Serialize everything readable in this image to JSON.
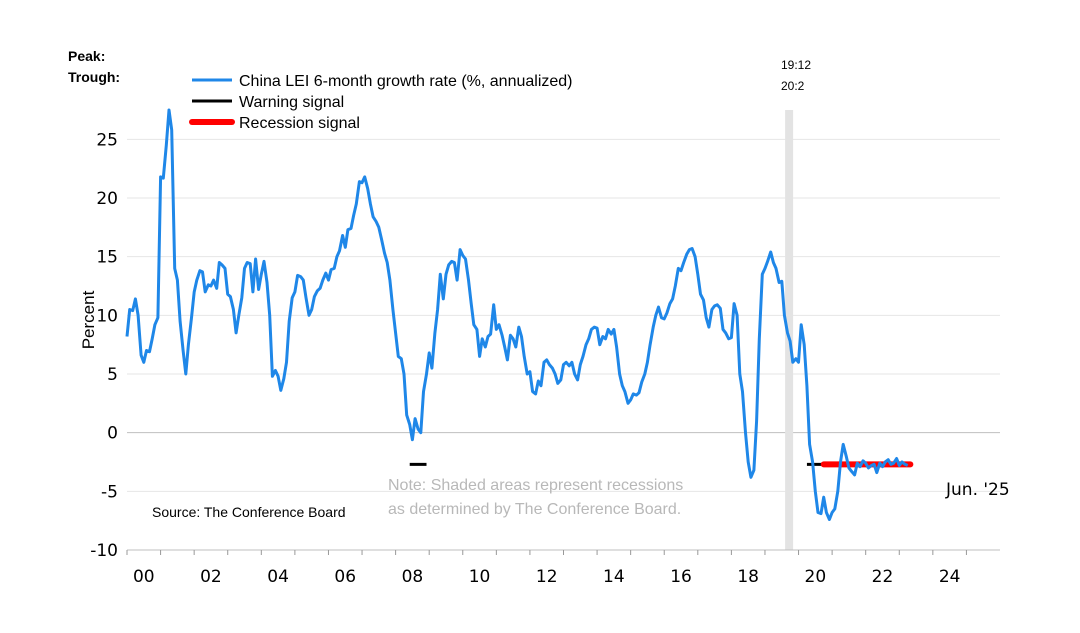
{
  "chart_data": {
    "type": "line",
    "ylabel": "Percent",
    "ylim": [
      -10,
      27.5
    ],
    "yticks": [
      25,
      20,
      15,
      10,
      5,
      0,
      -5,
      -10
    ],
    "xlim": [
      2000,
      2026
    ],
    "xticks": [
      {
        "label": "00",
        "year": 2000
      },
      {
        "label": "02",
        "year": 2002
      },
      {
        "label": "04",
        "year": 2004
      },
      {
        "label": "06",
        "year": 2006
      },
      {
        "label": "08",
        "year": 2008
      },
      {
        "label": "10",
        "year": 2010
      },
      {
        "label": "12",
        "year": 2012
      },
      {
        "label": "14",
        "year": 2014
      },
      {
        "label": "16",
        "year": 2016
      },
      {
        "label": "18",
        "year": 2018
      },
      {
        "label": "20",
        "year": 2020
      },
      {
        "label": "22",
        "year": 2022
      },
      {
        "label": "24",
        "year": 2024
      }
    ],
    "grid": "horizontal",
    "peak_label": "Peak:",
    "trough_label": "Trough:",
    "recessions": [
      {
        "start": 2019.6,
        "end": 2019.8,
        "peak": "19:12",
        "trough": "20:2"
      }
    ],
    "legend": {
      "placement": "top-left",
      "entries": [
        {
          "name": "China LEI 6-month growth rate (%, annualized)",
          "color": "#1f87e8",
          "style": "line"
        },
        {
          "name": "Warning signal",
          "color": "#000000",
          "style": "line"
        },
        {
          "name": "Recession signal",
          "color": "#ff0000",
          "style": "thick"
        }
      ]
    },
    "series": [
      {
        "name": "China LEI 6-month growth rate (%, annualized)",
        "color": "#1f87e8",
        "points": [
          [
            2000.0,
            8.2
          ],
          [
            2000.08,
            10.5
          ],
          [
            2000.17,
            10.4
          ],
          [
            2000.25,
            11.4
          ],
          [
            2000.33,
            10.0
          ],
          [
            2000.42,
            6.6
          ],
          [
            2000.5,
            6.0
          ],
          [
            2000.58,
            7.0
          ],
          [
            2000.67,
            6.9
          ],
          [
            2000.75,
            8.0
          ],
          [
            2000.83,
            9.2
          ],
          [
            2000.92,
            9.8
          ],
          [
            2001.0,
            21.8
          ],
          [
            2001.08,
            21.7
          ],
          [
            2001.17,
            24.5
          ],
          [
            2001.25,
            27.5
          ],
          [
            2001.33,
            25.8
          ],
          [
            2001.42,
            14.0
          ],
          [
            2001.5,
            13.0
          ],
          [
            2001.58,
            9.5
          ],
          [
            2001.67,
            7.0
          ],
          [
            2001.75,
            5.0
          ],
          [
            2001.83,
            7.5
          ],
          [
            2001.92,
            9.8
          ],
          [
            2002.0,
            12.0
          ],
          [
            2002.08,
            13.0
          ],
          [
            2002.17,
            13.8
          ],
          [
            2002.25,
            13.7
          ],
          [
            2002.33,
            12.0
          ],
          [
            2002.42,
            12.6
          ],
          [
            2002.5,
            12.5
          ],
          [
            2002.58,
            13.0
          ],
          [
            2002.67,
            12.3
          ],
          [
            2002.75,
            14.5
          ],
          [
            2002.83,
            14.3
          ],
          [
            2002.92,
            14.0
          ],
          [
            2003.0,
            11.8
          ],
          [
            2003.08,
            11.6
          ],
          [
            2003.17,
            10.5
          ],
          [
            2003.25,
            8.5
          ],
          [
            2003.33,
            10.0
          ],
          [
            2003.42,
            11.5
          ],
          [
            2003.5,
            14.0
          ],
          [
            2003.58,
            14.5
          ],
          [
            2003.67,
            14.4
          ],
          [
            2003.75,
            12.0
          ],
          [
            2003.83,
            14.8
          ],
          [
            2003.92,
            12.2
          ],
          [
            2004.0,
            13.5
          ],
          [
            2004.08,
            14.6
          ],
          [
            2004.17,
            12.8
          ],
          [
            2004.25,
            10.0
          ],
          [
            2004.33,
            4.8
          ],
          [
            2004.42,
            5.3
          ],
          [
            2004.5,
            4.8
          ],
          [
            2004.58,
            3.6
          ],
          [
            2004.67,
            4.6
          ],
          [
            2004.75,
            6.0
          ],
          [
            2004.83,
            9.5
          ],
          [
            2004.92,
            11.5
          ],
          [
            2005.0,
            12.0
          ],
          [
            2005.08,
            13.4
          ],
          [
            2005.17,
            13.3
          ],
          [
            2005.25,
            13.0
          ],
          [
            2005.33,
            11.5
          ],
          [
            2005.42,
            10.0
          ],
          [
            2005.5,
            10.5
          ],
          [
            2005.58,
            11.6
          ],
          [
            2005.67,
            12.1
          ],
          [
            2005.75,
            12.3
          ],
          [
            2005.83,
            13.0
          ],
          [
            2005.92,
            13.6
          ],
          [
            2006.0,
            13.0
          ],
          [
            2006.08,
            13.9
          ],
          [
            2006.17,
            14.0
          ],
          [
            2006.25,
            15.0
          ],
          [
            2006.33,
            15.5
          ],
          [
            2006.42,
            16.8
          ],
          [
            2006.5,
            15.8
          ],
          [
            2006.58,
            17.3
          ],
          [
            2006.67,
            17.4
          ],
          [
            2006.75,
            18.5
          ],
          [
            2006.83,
            19.5
          ],
          [
            2006.92,
            21.4
          ],
          [
            2007.0,
            21.3
          ],
          [
            2007.08,
            21.8
          ],
          [
            2007.17,
            20.8
          ],
          [
            2007.25,
            19.5
          ],
          [
            2007.33,
            18.4
          ],
          [
            2007.42,
            18.0
          ],
          [
            2007.5,
            17.5
          ],
          [
            2007.58,
            16.5
          ],
          [
            2007.67,
            15.3
          ],
          [
            2007.75,
            14.5
          ],
          [
            2007.83,
            13.0
          ],
          [
            2007.92,
            10.5
          ],
          [
            2008.0,
            8.5
          ],
          [
            2008.08,
            6.5
          ],
          [
            2008.17,
            6.3
          ],
          [
            2008.25,
            5.0
          ],
          [
            2008.33,
            1.5
          ],
          [
            2008.42,
            0.7
          ],
          [
            2008.5,
            -0.6
          ],
          [
            2008.58,
            1.2
          ],
          [
            2008.67,
            0.3
          ],
          [
            2008.75,
            0.0
          ],
          [
            2008.83,
            3.5
          ],
          [
            2008.92,
            5.0
          ],
          [
            2009.0,
            6.8
          ],
          [
            2009.08,
            5.5
          ],
          [
            2009.17,
            8.5
          ],
          [
            2009.25,
            10.5
          ],
          [
            2009.33,
            13.5
          ],
          [
            2009.42,
            11.4
          ],
          [
            2009.5,
            13.5
          ],
          [
            2009.58,
            14.3
          ],
          [
            2009.67,
            14.6
          ],
          [
            2009.75,
            14.5
          ],
          [
            2009.83,
            13.0
          ],
          [
            2009.92,
            15.6
          ],
          [
            2010.0,
            15.1
          ],
          [
            2010.08,
            14.8
          ],
          [
            2010.17,
            13.0
          ],
          [
            2010.25,
            11.0
          ],
          [
            2010.33,
            9.2
          ],
          [
            2010.42,
            8.8
          ],
          [
            2010.5,
            6.5
          ],
          [
            2010.58,
            8.0
          ],
          [
            2010.67,
            7.3
          ],
          [
            2010.75,
            8.2
          ],
          [
            2010.83,
            8.4
          ],
          [
            2010.92,
            10.9
          ],
          [
            2011.0,
            8.8
          ],
          [
            2011.08,
            9.2
          ],
          [
            2011.17,
            8.3
          ],
          [
            2011.25,
            7.3
          ],
          [
            2011.33,
            6.2
          ],
          [
            2011.42,
            8.3
          ],
          [
            2011.5,
            8.0
          ],
          [
            2011.58,
            7.3
          ],
          [
            2011.67,
            9.0
          ],
          [
            2011.75,
            8.2
          ],
          [
            2011.83,
            6.5
          ],
          [
            2011.92,
            5.0
          ],
          [
            2012.0,
            5.2
          ],
          [
            2012.08,
            3.5
          ],
          [
            2012.17,
            3.3
          ],
          [
            2012.25,
            4.4
          ],
          [
            2012.33,
            4.0
          ],
          [
            2012.42,
            6.0
          ],
          [
            2012.5,
            6.2
          ],
          [
            2012.58,
            5.8
          ],
          [
            2012.67,
            5.5
          ],
          [
            2012.75,
            5.0
          ],
          [
            2012.83,
            4.2
          ],
          [
            2012.92,
            4.5
          ],
          [
            2013.0,
            5.8
          ],
          [
            2013.08,
            6.0
          ],
          [
            2013.17,
            5.7
          ],
          [
            2013.25,
            6.0
          ],
          [
            2013.33,
            5.0
          ],
          [
            2013.42,
            4.5
          ],
          [
            2013.5,
            5.8
          ],
          [
            2013.58,
            6.5
          ],
          [
            2013.67,
            7.5
          ],
          [
            2013.75,
            8.0
          ],
          [
            2013.83,
            8.8
          ],
          [
            2013.92,
            9.0
          ],
          [
            2014.0,
            8.9
          ],
          [
            2014.08,
            7.5
          ],
          [
            2014.17,
            8.2
          ],
          [
            2014.25,
            8.0
          ],
          [
            2014.33,
            8.8
          ],
          [
            2014.42,
            8.4
          ],
          [
            2014.5,
            8.8
          ],
          [
            2014.58,
            7.3
          ],
          [
            2014.67,
            5.0
          ],
          [
            2014.75,
            4.0
          ],
          [
            2014.83,
            3.5
          ],
          [
            2014.92,
            2.5
          ],
          [
            2015.0,
            2.8
          ],
          [
            2015.08,
            3.3
          ],
          [
            2015.17,
            3.2
          ],
          [
            2015.25,
            3.4
          ],
          [
            2015.33,
            4.3
          ],
          [
            2015.42,
            5.0
          ],
          [
            2015.5,
            6.0
          ],
          [
            2015.58,
            7.5
          ],
          [
            2015.67,
            9.0
          ],
          [
            2015.75,
            10.0
          ],
          [
            2015.83,
            10.7
          ],
          [
            2015.92,
            9.8
          ],
          [
            2016.0,
            9.7
          ],
          [
            2016.08,
            10.2
          ],
          [
            2016.17,
            11.0
          ],
          [
            2016.25,
            11.4
          ],
          [
            2016.33,
            12.5
          ],
          [
            2016.42,
            14.0
          ],
          [
            2016.5,
            13.8
          ],
          [
            2016.58,
            14.5
          ],
          [
            2016.67,
            15.2
          ],
          [
            2016.75,
            15.6
          ],
          [
            2016.83,
            15.7
          ],
          [
            2016.92,
            15.0
          ],
          [
            2017.0,
            13.5
          ],
          [
            2017.08,
            11.8
          ],
          [
            2017.17,
            11.3
          ],
          [
            2017.25,
            9.8
          ],
          [
            2017.33,
            9.0
          ],
          [
            2017.42,
            10.5
          ],
          [
            2017.5,
            10.8
          ],
          [
            2017.58,
            10.9
          ],
          [
            2017.67,
            10.6
          ],
          [
            2017.75,
            8.8
          ],
          [
            2017.83,
            8.5
          ],
          [
            2017.92,
            8.0
          ],
          [
            2018.0,
            8.1
          ],
          [
            2018.08,
            11.0
          ],
          [
            2018.17,
            10.0
          ],
          [
            2018.25,
            5.0
          ],
          [
            2018.33,
            3.5
          ],
          [
            2018.42,
            0.0
          ],
          [
            2018.5,
            -2.5
          ],
          [
            2018.58,
            -3.8
          ],
          [
            2018.67,
            -3.2
          ],
          [
            2018.75,
            1.0
          ],
          [
            2018.83,
            8.0
          ],
          [
            2018.92,
            13.5
          ],
          [
            2019.0,
            14.0
          ],
          [
            2019.08,
            14.6
          ],
          [
            2019.17,
            15.4
          ],
          [
            2019.25,
            14.5
          ],
          [
            2019.33,
            14.0
          ],
          [
            2019.42,
            12.8
          ],
          [
            2019.5,
            12.9
          ],
          [
            2019.58,
            10.0
          ],
          [
            2019.67,
            8.5
          ],
          [
            2019.75,
            7.8
          ],
          [
            2019.83,
            6.0
          ],
          [
            2019.92,
            6.3
          ],
          [
            2020.0,
            6.0
          ],
          [
            2020.08,
            9.2
          ],
          [
            2020.17,
            7.5
          ],
          [
            2020.25,
            4.0
          ],
          [
            2020.33,
            -1.0
          ],
          [
            2020.42,
            -2.5
          ],
          [
            2020.5,
            -5.0
          ],
          [
            2020.58,
            -6.8
          ],
          [
            2020.67,
            -6.9
          ],
          [
            2020.75,
            -5.5
          ],
          [
            2020.83,
            -6.8
          ],
          [
            2020.92,
            -7.4
          ],
          [
            2021.0,
            -6.8
          ],
          [
            2021.08,
            -6.5
          ],
          [
            2021.17,
            -5.0
          ],
          [
            2021.25,
            -2.5
          ],
          [
            2021.33,
            -1.0
          ],
          [
            2021.42,
            -2.0
          ],
          [
            2021.5,
            -3.0
          ],
          [
            2021.58,
            -3.3
          ],
          [
            2021.67,
            -3.6
          ],
          [
            2021.75,
            -2.6
          ],
          [
            2021.83,
            -2.9
          ],
          [
            2021.92,
            -2.4
          ],
          [
            2022.0,
            -2.6
          ],
          [
            2022.08,
            -3.0
          ],
          [
            2022.17,
            -2.8
          ],
          [
            2022.25,
            -2.7
          ],
          [
            2022.33,
            -3.4
          ],
          [
            2022.42,
            -2.6
          ],
          [
            2022.5,
            -2.9
          ],
          [
            2022.58,
            -2.5
          ],
          [
            2022.67,
            -2.3
          ],
          [
            2022.75,
            -2.7
          ],
          [
            2022.83,
            -2.6
          ],
          [
            2022.92,
            -2.2
          ],
          [
            2023.0,
            -2.8
          ],
          [
            2023.08,
            -2.5
          ],
          [
            2023.17,
            -2.7
          ],
          [
            2023.25,
            -2.8
          ]
        ]
      }
    ],
    "warning_signals": [
      {
        "start": 2008.42,
        "end": 2008.92
      },
      {
        "start": 2020.25,
        "end": 2023.33
      }
    ],
    "recession_signals": [
      {
        "start": 2020.75,
        "end": 2023.33
      }
    ],
    "annotations": {
      "note_line1": "Note: Shaded areas represent recessions",
      "note_line2": "as determined by The Conference Board.",
      "source": "Source: The Conference Board",
      "end_label": "Jun. '25"
    }
  }
}
